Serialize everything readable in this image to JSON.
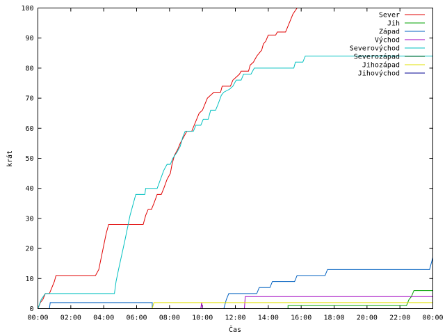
{
  "chart_data": {
    "type": "line",
    "title": "",
    "xlabel": "Čas",
    "ylabel": "krát",
    "xlim": [
      0,
      24
    ],
    "ylim": [
      0,
      100
    ],
    "grid": false,
    "legend_position": "top-right",
    "x_ticks": [
      {
        "value": 0,
        "label": "00:00"
      },
      {
        "value": 2,
        "label": "02:00"
      },
      {
        "value": 4,
        "label": "04:00"
      },
      {
        "value": 6,
        "label": "06:00"
      },
      {
        "value": 8,
        "label": "08:00"
      },
      {
        "value": 10,
        "label": "10:00"
      },
      {
        "value": 12,
        "label": "12:00"
      },
      {
        "value": 14,
        "label": "14:00"
      },
      {
        "value": 16,
        "label": "16:00"
      },
      {
        "value": 18,
        "label": "18:00"
      },
      {
        "value": 20,
        "label": "20:00"
      },
      {
        "value": 22,
        "label": "22:00"
      },
      {
        "value": 24,
        "label": "00:00"
      }
    ],
    "y_ticks": [
      0,
      10,
      20,
      30,
      40,
      50,
      60,
      70,
      80,
      90,
      100
    ],
    "series": [
      {
        "name": "Sever",
        "color": "#e00000",
        "points": [
          [
            0,
            0
          ],
          [
            0.15,
            2
          ],
          [
            0.3,
            3
          ],
          [
            0.45,
            5
          ],
          [
            0.7,
            5
          ],
          [
            0.85,
            7
          ],
          [
            1,
            9
          ],
          [
            1.1,
            11
          ],
          [
            3.5,
            11
          ],
          [
            3.7,
            13
          ],
          [
            3.85,
            17
          ],
          [
            4,
            21
          ],
          [
            4.15,
            25
          ],
          [
            4.3,
            28
          ],
          [
            6.4,
            28
          ],
          [
            6.55,
            31
          ],
          [
            6.7,
            33
          ],
          [
            6.9,
            33
          ],
          [
            7.05,
            35
          ],
          [
            7.25,
            38
          ],
          [
            7.5,
            38
          ],
          [
            7.65,
            40
          ],
          [
            7.85,
            43
          ],
          [
            8.05,
            45
          ],
          [
            8.15,
            48
          ],
          [
            8.3,
            51
          ],
          [
            8.5,
            53
          ],
          [
            8.65,
            55
          ],
          [
            8.85,
            57
          ],
          [
            9.05,
            59
          ],
          [
            9.35,
            59
          ],
          [
            9.5,
            61
          ],
          [
            9.65,
            63
          ],
          [
            9.8,
            65
          ],
          [
            10,
            66
          ],
          [
            10.15,
            68
          ],
          [
            10.3,
            70
          ],
          [
            10.5,
            71
          ],
          [
            10.7,
            72
          ],
          [
            11.1,
            72
          ],
          [
            11.2,
            74
          ],
          [
            11.7,
            74
          ],
          [
            11.85,
            76
          ],
          [
            12.05,
            77
          ],
          [
            12.25,
            78
          ],
          [
            12.35,
            79
          ],
          [
            12.8,
            79
          ],
          [
            12.9,
            81
          ],
          [
            13.1,
            82
          ],
          [
            13.3,
            84
          ],
          [
            13.6,
            86
          ],
          [
            13.7,
            88
          ],
          [
            13.85,
            89
          ],
          [
            14,
            91
          ],
          [
            14.45,
            91
          ],
          [
            14.55,
            92
          ],
          [
            15.05,
            92
          ],
          [
            15.2,
            94
          ],
          [
            15.35,
            96
          ],
          [
            15.5,
            98
          ],
          [
            15.75,
            100
          ]
        ]
      },
      {
        "name": "Jih",
        "color": "#00a000",
        "points": [
          [
            0,
            0
          ],
          [
            15.2,
            0
          ],
          [
            15.2,
            1
          ],
          [
            22.4,
            1
          ],
          [
            22.55,
            3
          ],
          [
            22.7,
            4
          ],
          [
            22.85,
            6
          ],
          [
            24,
            6
          ]
        ]
      },
      {
        "name": "Západ",
        "color": "#0060c0",
        "points": [
          [
            0,
            0
          ],
          [
            0.7,
            0
          ],
          [
            0.75,
            2
          ],
          [
            6.95,
            2
          ],
          [
            6.95,
            0
          ],
          [
            11.3,
            0
          ],
          [
            11.45,
            3
          ],
          [
            11.6,
            5
          ],
          [
            13.3,
            5
          ],
          [
            13.45,
            7
          ],
          [
            14.1,
            7
          ],
          [
            14.25,
            9
          ],
          [
            15.6,
            9
          ],
          [
            15.75,
            11
          ],
          [
            17.45,
            11
          ],
          [
            17.6,
            13
          ],
          [
            23.8,
            13
          ],
          [
            24,
            17
          ]
        ]
      },
      {
        "name": "Východ",
        "color": "#a000c0",
        "points": [
          [
            0,
            0
          ],
          [
            9.9,
            0
          ],
          [
            9.95,
            2
          ],
          [
            10,
            0
          ],
          [
            12.55,
            0
          ],
          [
            12.6,
            4
          ],
          [
            24,
            4
          ]
        ]
      },
      {
        "name": "Severovýchod",
        "color": "#00c0c0",
        "points": [
          [
            0,
            0
          ],
          [
            0.2,
            3
          ],
          [
            0.45,
            5
          ],
          [
            4.65,
            5
          ],
          [
            4.75,
            9
          ],
          [
            4.9,
            13
          ],
          [
            5.1,
            18
          ],
          [
            5.3,
            23
          ],
          [
            5.45,
            27
          ],
          [
            5.6,
            31
          ],
          [
            5.75,
            34
          ],
          [
            5.95,
            38
          ],
          [
            6.5,
            38
          ],
          [
            6.55,
            40
          ],
          [
            7.25,
            40
          ],
          [
            7.45,
            43
          ],
          [
            7.65,
            46
          ],
          [
            7.85,
            48
          ],
          [
            8.05,
            48
          ],
          [
            8.2,
            50
          ],
          [
            8.45,
            52
          ],
          [
            8.65,
            54
          ],
          [
            8.8,
            57
          ],
          [
            8.95,
            59
          ],
          [
            9.45,
            59
          ],
          [
            9.6,
            61
          ],
          [
            9.9,
            61
          ],
          [
            10.05,
            63
          ],
          [
            10.35,
            63
          ],
          [
            10.5,
            66
          ],
          [
            10.8,
            66
          ],
          [
            10.95,
            68
          ],
          [
            11.15,
            71
          ],
          [
            11.3,
            72
          ],
          [
            11.65,
            73
          ],
          [
            11.85,
            74
          ],
          [
            12.05,
            76
          ],
          [
            12.35,
            76
          ],
          [
            12.5,
            78
          ],
          [
            12.95,
            78
          ],
          [
            13.15,
            80
          ],
          [
            15.55,
            80
          ],
          [
            15.65,
            82
          ],
          [
            16.1,
            82
          ],
          [
            16.25,
            84
          ],
          [
            24,
            84
          ]
        ]
      },
      {
        "name": "Severozápad",
        "color": "#006020",
        "points": [
          [
            0,
            0
          ],
          [
            24,
            0
          ]
        ]
      },
      {
        "name": "Jihozápad",
        "color": "#e0e000",
        "points": [
          [
            0,
            0
          ],
          [
            6.95,
            0
          ],
          [
            7.05,
            2
          ],
          [
            24,
            2
          ]
        ]
      },
      {
        "name": "Jihovýchod",
        "color": "#000090",
        "points": [
          [
            0,
            0
          ],
          [
            24,
            0
          ]
        ]
      }
    ]
  }
}
